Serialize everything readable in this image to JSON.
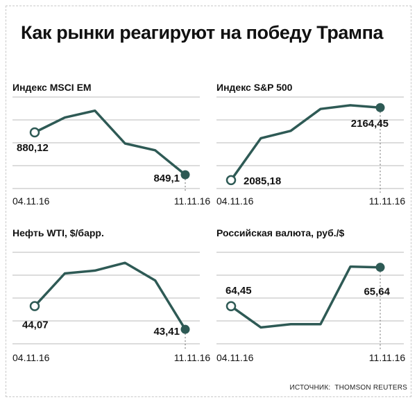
{
  "title": "Как рынки реагируют на победу Трампа",
  "source": {
    "prefix": "ИСТОЧНИК:",
    "name": "THOMSON REUTERS"
  },
  "colors": {
    "line": "#2e5a55",
    "grid": "#b9b9b9",
    "dot_fill": "#2e5a55",
    "open_dot_fill": "#ffffff"
  },
  "chart_data": [
    {
      "type": "line",
      "title": "Индекс MSCI EM",
      "x": [
        "04.11.16",
        "",
        "",
        "",
        "",
        "11.11.16"
      ],
      "x_labels": [
        "04.11.16",
        "11.11.16"
      ],
      "series": [
        {
          "values": [
            880.12,
            891,
            896,
            872,
            867,
            849.1
          ]
        }
      ],
      "start_label": "880,12",
      "end_label": "849,1",
      "ylim": [
        839,
        906
      ],
      "grid": true
    },
    {
      "type": "line",
      "title": "Индекс S&P 500",
      "x": [
        "04.11.16",
        "",
        "",
        "",
        "",
        "11.11.16"
      ],
      "x_labels": [
        "04.11.16",
        "11.11.16"
      ],
      "series": [
        {
          "values": [
            2085.18,
            2131,
            2139,
            2163,
            2167,
            2164.45
          ]
        }
      ],
      "start_label": "2085,18",
      "end_label": "2164,45",
      "ylim": [
        2076,
        2176
      ],
      "grid": true
    },
    {
      "type": "line",
      "title": "Нефть WTI, $/барр.",
      "x": [
        "04.11.16",
        "",
        "",
        "",
        "",
        "11.11.16"
      ],
      "x_labels": [
        "04.11.16",
        "11.11.16"
      ],
      "series": [
        {
          "values": [
            44.07,
            45.0,
            45.08,
            45.3,
            44.8,
            43.41
          ]
        }
      ],
      "start_label": "44,07",
      "end_label": "43,41",
      "ylim": [
        43.0,
        45.6
      ],
      "grid": true
    },
    {
      "type": "line",
      "title": "Российская валюта, руб./$",
      "x": [
        "04.11.16",
        "",
        "",
        "",
        "",
        "11.11.16"
      ],
      "x_labels": [
        "04.11.16",
        "11.11.16"
      ],
      "series": [
        {
          "values": [
            64.45,
            63.8,
            63.9,
            63.9,
            65.66,
            65.64
          ]
        }
      ],
      "start_label": "64,45",
      "end_label": "65,64",
      "ylim": [
        63.3,
        66.1
      ],
      "grid": true
    }
  ]
}
